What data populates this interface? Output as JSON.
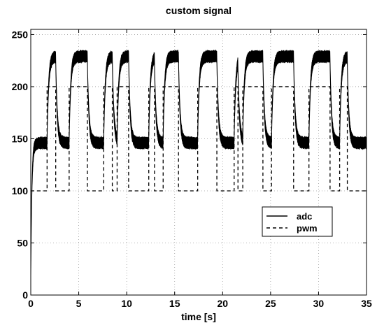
{
  "chart_data": {
    "type": "line",
    "title": "custom signal",
    "xlabel": "time [s]",
    "ylabel": "",
    "xlim": [
      0,
      35
    ],
    "ylim": [
      0,
      255
    ],
    "xticks": [
      0,
      5,
      10,
      15,
      20,
      25,
      30,
      35
    ],
    "yticks": [
      0,
      50,
      100,
      150,
      200,
      250
    ],
    "grid": true,
    "legend_position": "center-right",
    "pwm_high": 200,
    "pwm_low": 100,
    "adc_high": 229,
    "adc_low": 146,
    "adc_noise_band": 10,
    "series": [
      {
        "name": "adc",
        "style": "solid",
        "color": "#000000",
        "description": "measured response, noisy band tracking pwm with first-order lag"
      },
      {
        "name": "pwm",
        "style": "dashed",
        "color": "#000000",
        "x": [
          0,
          1.7,
          1.7,
          2.6,
          2.6,
          4.0,
          4.0,
          5.9,
          5.9,
          7.6,
          7.6,
          8.5,
          8.5,
          9.0,
          9.0,
          10.2,
          10.2,
          12.3,
          12.3,
          12.9,
          12.9,
          13.8,
          13.8,
          15.4,
          15.4,
          17.4,
          17.4,
          19.4,
          19.4,
          21.2,
          21.2,
          21.6,
          21.6,
          22.1,
          22.1,
          24.2,
          24.2,
          25.1,
          25.1,
          27.4,
          27.4,
          29.0,
          29.0,
          31.2,
          31.2,
          32.2,
          32.2,
          33.0,
          33.0,
          35
        ],
        "values": [
          100,
          100,
          200,
          200,
          100,
          100,
          200,
          200,
          100,
          100,
          200,
          200,
          100,
          100,
          200,
          200,
          100,
          100,
          200,
          200,
          100,
          100,
          200,
          200,
          100,
          100,
          200,
          200,
          100,
          100,
          200,
          200,
          100,
          100,
          200,
          200,
          100,
          100,
          200,
          200,
          100,
          100,
          200,
          200,
          100,
          100,
          200,
          200,
          100,
          100
        ]
      }
    ]
  }
}
